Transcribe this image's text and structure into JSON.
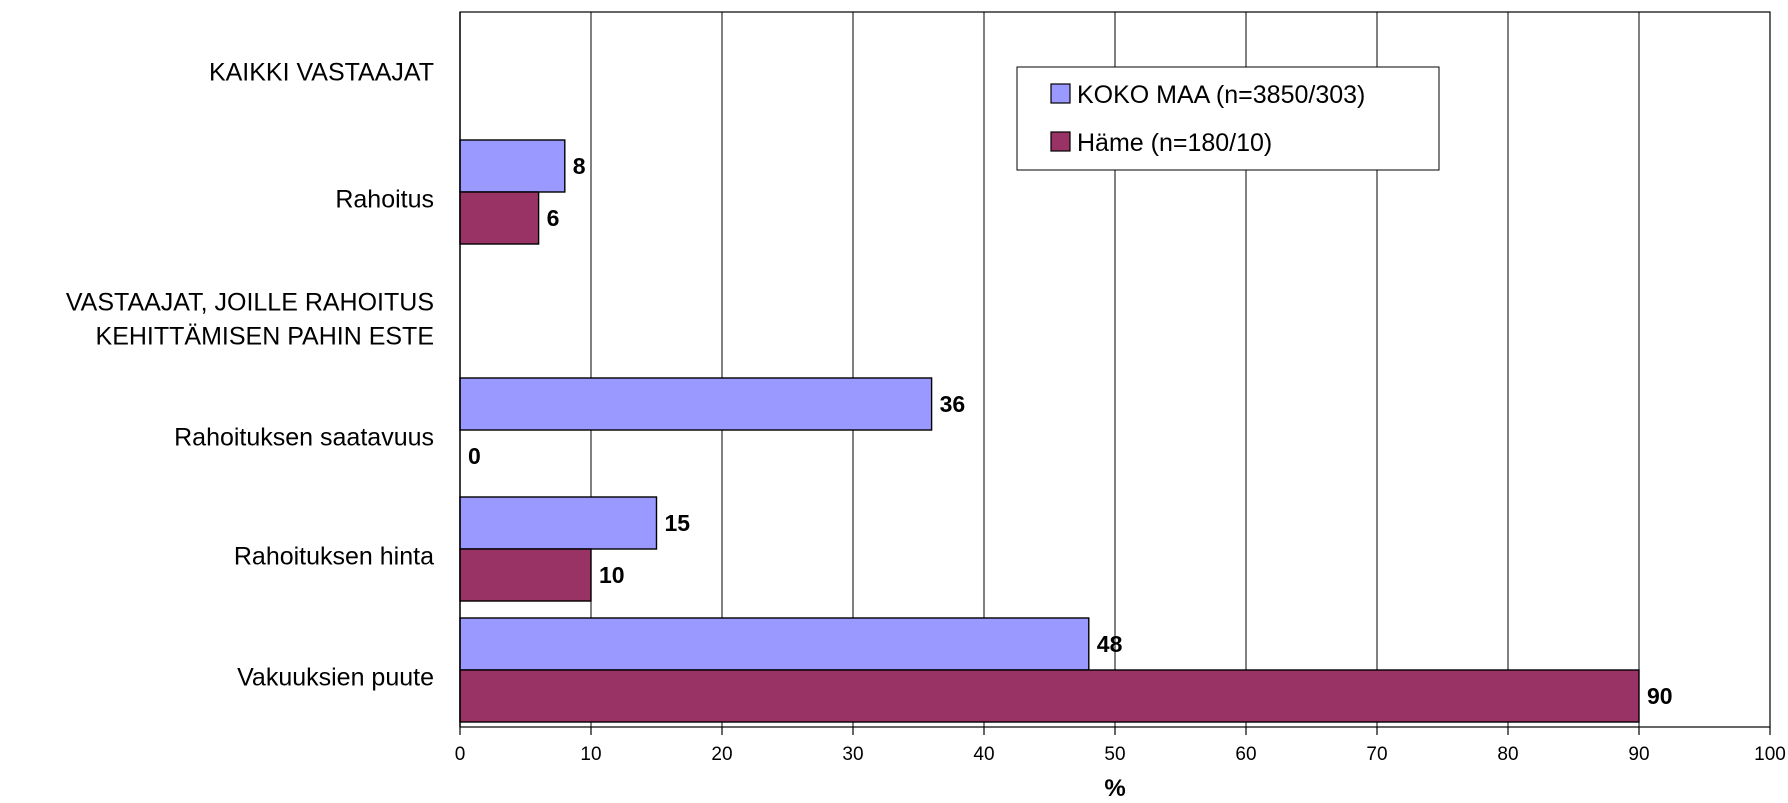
{
  "chart_data": {
    "type": "bar",
    "orientation": "horizontal",
    "title": "",
    "xlabel": "%",
    "ylabel": "",
    "xlim": [
      0,
      100
    ],
    "x_ticks": [
      0,
      10,
      20,
      30,
      40,
      50,
      60,
      70,
      80,
      90,
      100
    ],
    "grid": "vertical",
    "legend_position": "top-right",
    "categories": [
      {
        "label": "KAIKKI VASTAAJAT",
        "lines": [
          "KAIKKI VASTAAJAT"
        ],
        "is_header": true
      },
      {
        "label": "Rahoitus",
        "lines": [
          "Rahoitus"
        ],
        "is_header": false
      },
      {
        "label": "VASTAAJAT, JOILLE RAHOITUS KEHITTÄMISEN PAHIN ESTE",
        "lines": [
          "VASTAAJAT, JOILLE RAHOITUS",
          "KEHITTÄMISEN PAHIN ESTE"
        ],
        "is_header": true
      },
      {
        "label": "Rahoituksen saatavuus",
        "lines": [
          "Rahoituksen saatavuus"
        ],
        "is_header": false
      },
      {
        "label": "Rahoituksen hinta",
        "lines": [
          "Rahoituksen hinta"
        ],
        "is_header": false
      },
      {
        "label": "Vakuuksien puute",
        "lines": [
          "Vakuuksien puute"
        ],
        "is_header": false
      }
    ],
    "series": [
      {
        "name": "KOKO MAA (n=3850/303)",
        "color": "#9999ff",
        "values": [
          null,
          8,
          null,
          36,
          15,
          48
        ]
      },
      {
        "name": "Häme (n=180/10)",
        "color": "#993366",
        "values": [
          null,
          6,
          null,
          0,
          10,
          90
        ]
      }
    ]
  }
}
